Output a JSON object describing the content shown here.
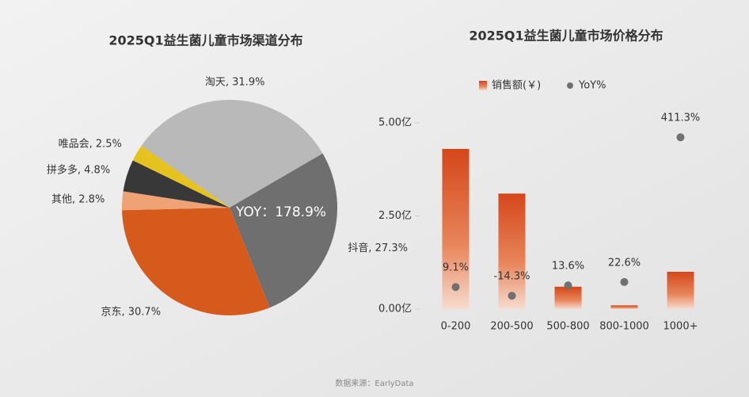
{
  "chart_data": [
    {
      "type": "pie",
      "title": "2025Q1益生菌儿童市场渠道分布",
      "categories": [
        "淘天",
        "抖音",
        "京东",
        "其他",
        "拼多多",
        "唯品会"
      ],
      "values": [
        31.9,
        27.3,
        30.7,
        2.8,
        4.8,
        2.5
      ],
      "labels": [
        "淘天, 31.9%",
        "抖音, 27.3%",
        "京东, 30.7%",
        "其他, 2.8%",
        "拼多多, 4.8%",
        "唯品会, 2.5%"
      ],
      "colors": [
        "#b9b9b9",
        "#6f6f6f",
        "#d65a1c",
        "#efa273",
        "#383838",
        "#e6c21e"
      ],
      "annotation": "YOY：178.9%"
    },
    {
      "type": "bar",
      "title": "2025Q1益生菌儿童市场价格分布",
      "categories": [
        "0-200",
        "200-500",
        "500-800",
        "800-1000",
        "1000+"
      ],
      "series": [
        {
          "name": "销售额(￥)",
          "color": "#d4461a",
          "values": [
            4.3,
            3.1,
            0.6,
            0.1,
            1.0
          ]
        },
        {
          "name": "YoY%",
          "color": "#707070",
          "axis": "y2",
          "values": [
            9.1,
            -14.3,
            13.6,
            22.6,
            411.3
          ],
          "value_labels": [
            "9.1%",
            "-14.3%",
            "13.6%",
            "22.6%",
            "411.3%"
          ]
        }
      ],
      "ylim": [
        0,
        5
      ],
      "yticks": [
        {
          "value": 0,
          "label": "0.00亿"
        },
        {
          "value": 2.5,
          "label": "2.50亿"
        },
        {
          "value": 5,
          "label": "5.00亿"
        }
      ],
      "y2lim": [
        -50,
        450
      ]
    }
  ],
  "source": "数据来源：EarlyData"
}
